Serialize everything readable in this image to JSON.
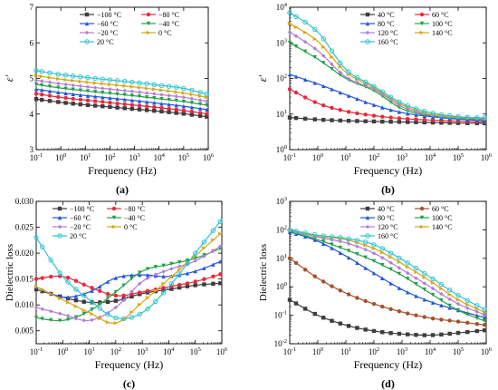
{
  "colors": {
    "m100": "#3d3d3d",
    "m80": "#e8283c",
    "m60": "#2255d8",
    "m40": "#25a047",
    "m20": "#b07cd8",
    "z0": "#d9a514",
    "p20": "#2fc3cf",
    "c40": "#3d3d3d",
    "c60": "#e8283c",
    "c80": "#2255d8",
    "c100": "#25a047",
    "c120": "#b07cd8",
    "c140": "#d9a514",
    "c160": "#2fc3cf",
    "d40": "#3d3d3d",
    "d60": "#a4502a",
    "d80": "#2255d8",
    "d100": "#25a047",
    "d120": "#b07cd8",
    "d140": "#d9a514",
    "d160": "#2fc3cf"
  },
  "chart_data": [
    {
      "panel": "(a)",
      "type": "line",
      "xlabel": "Frequency (Hz)",
      "ylabel": "ε′",
      "xscale": "log",
      "xlim": [
        0.1,
        1000000
      ],
      "xticks": [
        "10-1",
        "100",
        "101",
        "102",
        "103",
        "104",
        "105",
        "106"
      ],
      "yscale": "linear",
      "ylim": [
        3,
        7
      ],
      "yticks": [
        "3",
        "4",
        "5",
        "6",
        "7"
      ],
      "legend_cols": 2,
      "x": [
        0.1,
        1,
        10,
        100,
        1000,
        10000,
        100000,
        1000000
      ],
      "series": [
        {
          "name": "−100 °C",
          "color": "m100",
          "values": [
            4.42,
            4.33,
            4.26,
            4.2,
            4.14,
            4.08,
            4.01,
            3.92
          ]
        },
        {
          "name": "−80 °C",
          "color": "m80",
          "values": [
            4.57,
            4.47,
            4.39,
            4.32,
            4.25,
            4.18,
            4.1,
            4.0
          ]
        },
        {
          "name": "−60 °C",
          "color": "m60",
          "values": [
            4.7,
            4.6,
            4.52,
            4.45,
            4.38,
            4.3,
            4.22,
            4.12
          ]
        },
        {
          "name": "−40 °C",
          "color": "m40",
          "values": [
            4.83,
            4.73,
            4.65,
            4.58,
            4.51,
            4.43,
            4.35,
            4.24
          ]
        },
        {
          "name": "−20 °C",
          "color": "m20",
          "values": [
            4.95,
            4.85,
            4.77,
            4.7,
            4.63,
            4.55,
            4.47,
            4.35
          ]
        },
        {
          "name": "0 °C",
          "color": "z0",
          "values": [
            5.08,
            4.98,
            4.9,
            4.83,
            4.76,
            4.68,
            4.59,
            4.46
          ]
        },
        {
          "name": "20 °C",
          "color": "p20",
          "values": [
            5.22,
            5.11,
            5.03,
            4.96,
            4.89,
            4.81,
            4.72,
            4.55
          ]
        }
      ]
    },
    {
      "panel": "(b)",
      "type": "line",
      "xlabel": "Frequency (Hz)",
      "ylabel": "ε′",
      "xscale": "log",
      "xlim": [
        0.1,
        1000000
      ],
      "xticks": [
        "10-1",
        "100",
        "101",
        "102",
        "103",
        "104",
        "105",
        "106"
      ],
      "yscale": "log",
      "ylim": [
        1,
        10000
      ],
      "yticks": [
        "100",
        "101",
        "102",
        "103",
        "104"
      ],
      "legend_cols": 2,
      "x": [
        0.1,
        1,
        10,
        100,
        1000,
        10000,
        100000,
        1000000
      ],
      "series": [
        {
          "name": "40 °C",
          "color": "c40",
          "values": [
            8,
            7,
            6.5,
            6.2,
            6,
            5.8,
            5.6,
            5.5
          ]
        },
        {
          "name": "60 °C",
          "color": "c60",
          "values": [
            50,
            20,
            12,
            9,
            7.5,
            6.8,
            6.3,
            6
          ]
        },
        {
          "name": "80 °C",
          "color": "c80",
          "values": [
            130,
            70,
            35,
            18,
            11,
            8.5,
            7.2,
            6.5
          ]
        },
        {
          "name": "100 °C",
          "color": "c100",
          "values": [
            1000,
            350,
            100,
            45,
            14,
            9,
            7.5,
            7
          ]
        },
        {
          "name": "120 °C",
          "color": "c120",
          "values": [
            2000,
            600,
            110,
            50,
            16,
            9.5,
            8,
            7.2
          ]
        },
        {
          "name": "140 °C",
          "color": "c140",
          "values": [
            3500,
            1100,
            150,
            55,
            18,
            10,
            8.3,
            7.5
          ]
        },
        {
          "name": "160 °C",
          "color": "c160",
          "values": [
            7000,
            2000,
            180,
            60,
            20,
            11,
            8.5,
            7.7
          ]
        }
      ]
    },
    {
      "panel": "(c)",
      "type": "line",
      "xlabel": "Frequency (Hz)",
      "ylabel": "Dielectric loss",
      "xscale": "log",
      "xlim": [
        0.1,
        1000000
      ],
      "xticks": [
        "10-1",
        "100",
        "101",
        "102",
        "103",
        "104",
        "105",
        "106"
      ],
      "yscale": "linear",
      "ylim": [
        0.0025,
        0.03
      ],
      "yticks": [
        "0.005",
        "0.010",
        "0.015",
        "0.020",
        "0.025",
        "0.030"
      ],
      "legend_cols": 2,
      "x": [
        0.1,
        1,
        10,
        100,
        1000,
        10000,
        100000,
        1000000
      ],
      "series": [
        {
          "name": "−100 °C",
          "color": "m100",
          "values": [
            0.013,
            0.0115,
            0.0105,
            0.0108,
            0.0122,
            0.013,
            0.0138,
            0.0142
          ]
        },
        {
          "name": "−80 °C",
          "color": "m80",
          "values": [
            0.015,
            0.0155,
            0.0135,
            0.0118,
            0.0125,
            0.0135,
            0.0145,
            0.016
          ]
        },
        {
          "name": "−60 °C",
          "color": "m60",
          "values": [
            0.0135,
            0.0115,
            0.0125,
            0.0152,
            0.0158,
            0.0155,
            0.0165,
            0.0185
          ]
        },
        {
          "name": "−40 °C",
          "color": "m40",
          "values": [
            0.0075,
            0.007,
            0.0088,
            0.0125,
            0.0165,
            0.0178,
            0.019,
            0.021
          ]
        },
        {
          "name": "−20 °C",
          "color": "m20",
          "values": [
            0.0095,
            0.0082,
            0.007,
            0.0095,
            0.0145,
            0.0168,
            0.0185,
            0.0215
          ]
        },
        {
          "name": "0 °C",
          "color": "z0",
          "values": [
            0.0135,
            0.011,
            0.0085,
            0.0065,
            0.0105,
            0.015,
            0.0195,
            0.024
          ]
        },
        {
          "name": "20 °C",
          "color": "p20",
          "values": [
            0.023,
            0.0155,
            0.011,
            0.0075,
            0.0085,
            0.0135,
            0.02,
            0.0265
          ]
        }
      ]
    },
    {
      "panel": "(d)",
      "type": "line",
      "xlabel": "Frequency (Hz)",
      "ylabel": "Dielectric loss",
      "xscale": "log",
      "xlim": [
        0.1,
        1000000
      ],
      "xticks": [
        "10-1",
        "100",
        "101",
        "102",
        "103",
        "104",
        "105",
        "106"
      ],
      "yscale": "log",
      "ylim": [
        0.01,
        1000
      ],
      "yticks": [
        "10-2",
        "10-1",
        "100",
        "101",
        "102",
        "103"
      ],
      "legend_cols": 2,
      "x": [
        0.1,
        1,
        10,
        100,
        1000,
        10000,
        100000,
        1000000
      ],
      "series": [
        {
          "name": "40 °C",
          "color": "d40",
          "values": [
            0.35,
            0.1,
            0.045,
            0.028,
            0.022,
            0.02,
            0.024,
            0.03
          ]
        },
        {
          "name": "60 °C",
          "color": "d60",
          "values": [
            10,
            2,
            0.6,
            0.25,
            0.13,
            0.08,
            0.06,
            0.045
          ]
        },
        {
          "name": "80 °C",
          "color": "d80",
          "values": [
            85,
            40,
            12,
            3,
            0.8,
            0.3,
            0.15,
            0.08
          ]
        },
        {
          "name": "100 °C",
          "color": "d100",
          "values": [
            90,
            45,
            20,
            8,
            2.5,
            0.6,
            0.15,
            0.06
          ]
        },
        {
          "name": "120 °C",
          "color": "d120",
          "values": [
            95,
            55,
            35,
            15,
            4,
            1,
            0.25,
            0.1
          ]
        },
        {
          "name": "140 °C",
          "color": "d140",
          "values": [
            100,
            60,
            45,
            22,
            6.5,
            1.6,
            0.35,
            0.12
          ]
        },
        {
          "name": "160 °C",
          "color": "d160",
          "values": [
            100,
            65,
            50,
            30,
            9,
            2.2,
            0.5,
            0.15
          ]
        }
      ]
    }
  ]
}
